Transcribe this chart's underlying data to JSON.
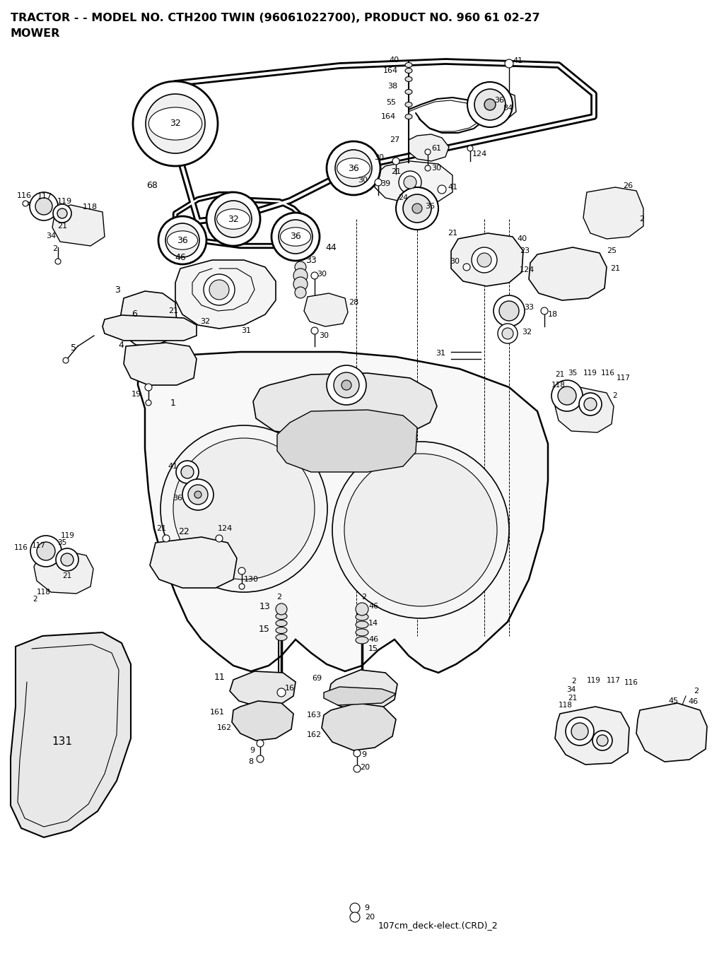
{
  "title_line1": "TRACTOR - - MODEL NO. CTH200 TWIN (96061022700), PRODUCT NO. 960 61 02-27",
  "title_line2": "MOWER",
  "footer_text": "107cm_deck-elect.(CRD)_2",
  "bg_color": "#ffffff",
  "line_color": "#000000",
  "text_color": "#000000",
  "title_fontsize": 11.5,
  "label_fontsize": 8.5,
  "fig_width": 10.24,
  "fig_height": 13.6,
  "dpi": 100
}
